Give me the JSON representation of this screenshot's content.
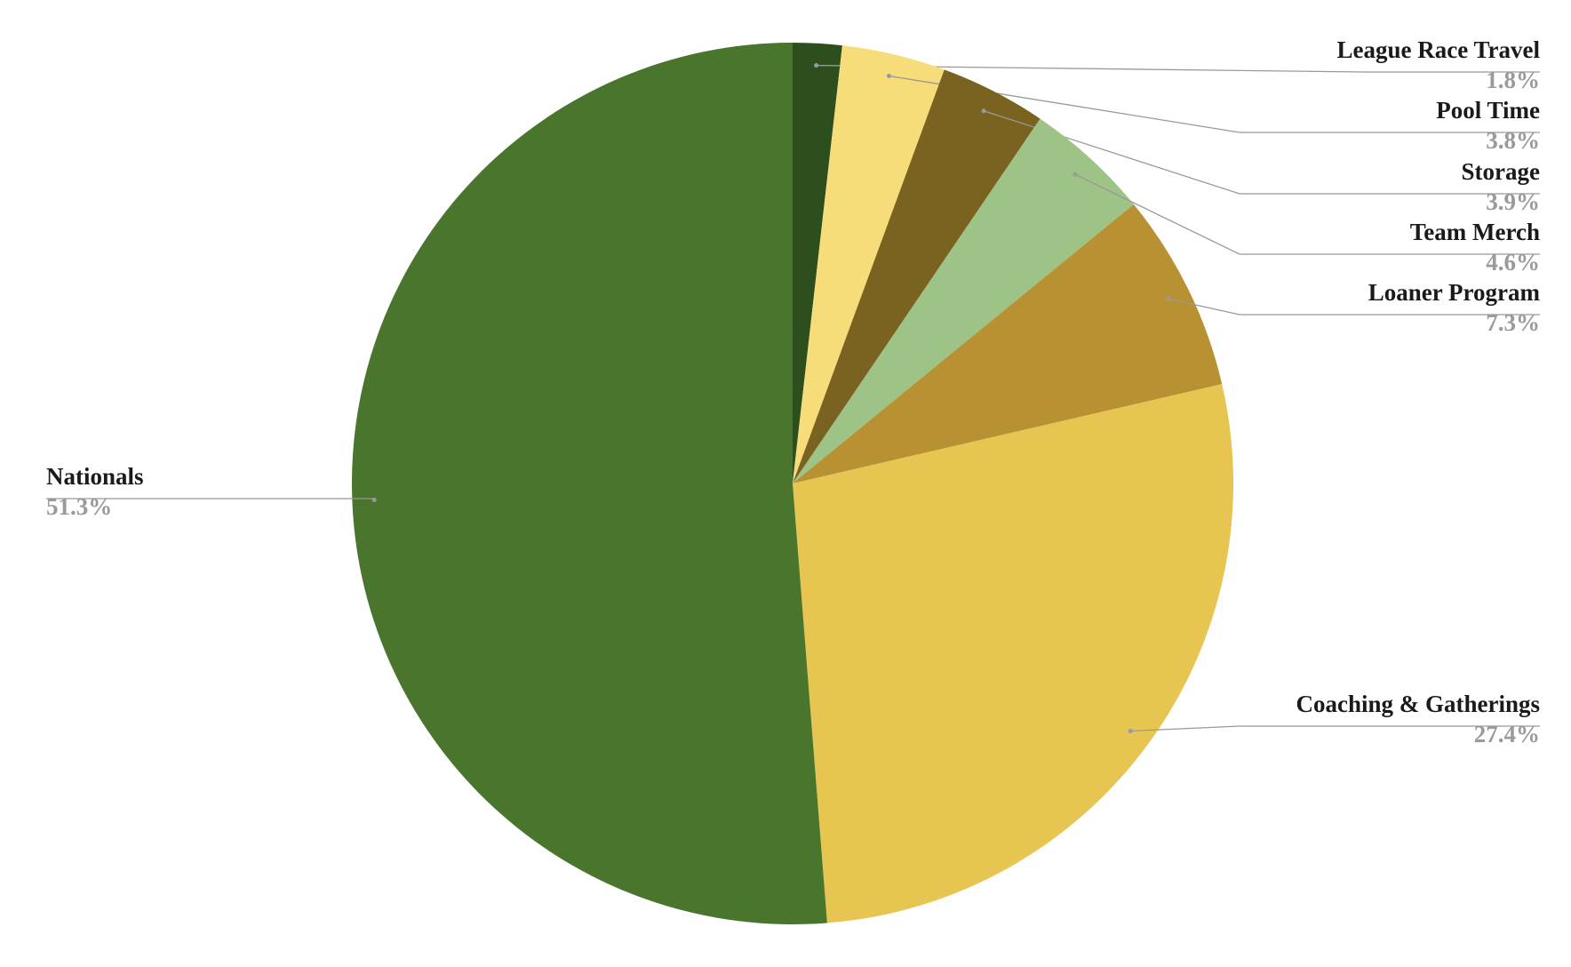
{
  "chart_data": {
    "type": "pie",
    "categories": [
      "League Race Travel",
      "Pool Time",
      "Storage",
      "Team Merch",
      "Loaner Program",
      "Coaching & Gatherings",
      "Nationals"
    ],
    "values": [
      1.8,
      3.8,
      3.9,
      4.6,
      7.3,
      27.4,
      51.3
    ],
    "value_labels": [
      "1.8%",
      "3.8%",
      "3.9%",
      "4.6%",
      "7.3%",
      "27.4%",
      "51.3%"
    ],
    "colors": [
      "#2d4f1e",
      "#f7dc7a",
      "#7a6320",
      "#9ec386",
      "#b89232",
      "#e6c550",
      "#4a752d"
    ]
  }
}
